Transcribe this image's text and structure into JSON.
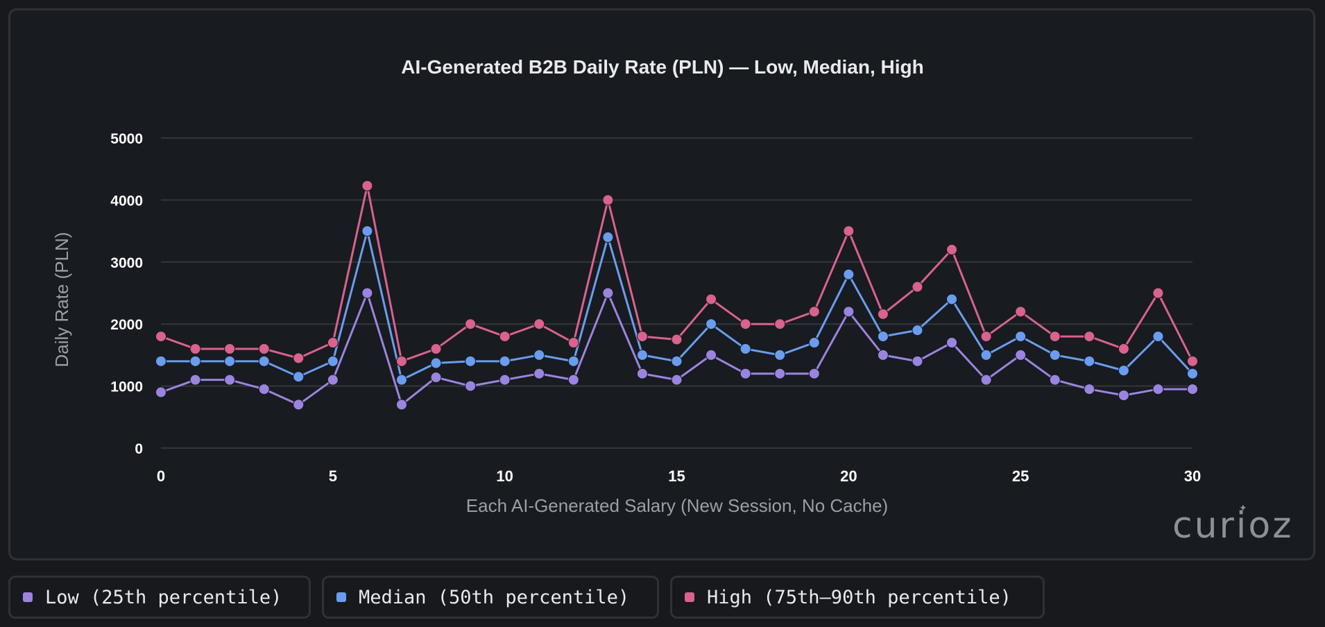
{
  "chart_data": {
    "type": "line",
    "title": "AI-Generated B2B Daily Rate (PLN) — Low, Median, High",
    "xlabel": "Each AI-Generated Salary (New Session, No Cache)",
    "ylabel": "Daily Rate (PLN)",
    "xlim": [
      0,
      30
    ],
    "ylim": [
      0,
      5000
    ],
    "x_ticks": [
      0,
      5,
      10,
      15,
      20,
      25,
      30
    ],
    "y_ticks": [
      0,
      1000,
      2000,
      3000,
      4000,
      5000
    ],
    "grid": true,
    "series": [
      {
        "name": "Low (25th percentile)",
        "color": "#9b84e0",
        "values": [
          900,
          1100,
          1100,
          950,
          700,
          1100,
          2500,
          700,
          1140,
          1000,
          1100,
          1200,
          1100,
          2500,
          1200,
          1100,
          1500,
          1200,
          1200,
          1200,
          2200,
          1500,
          1400,
          1700,
          1100,
          1500,
          1100,
          950,
          850,
          950,
          950
        ]
      },
      {
        "name": "Median (50th percentile)",
        "color": "#6a9df0",
        "values": [
          1400,
          1400,
          1400,
          1400,
          1150,
          1400,
          3500,
          1100,
          1370,
          1400,
          1400,
          1500,
          1400,
          3400,
          1500,
          1400,
          2000,
          1600,
          1500,
          1700,
          2800,
          1800,
          1900,
          2400,
          1500,
          1800,
          1500,
          1400,
          1250,
          1800,
          1200
        ]
      },
      {
        "name": "High (75th–90th percentile)",
        "color": "#d9628f",
        "values": [
          1800,
          1600,
          1600,
          1600,
          1450,
          1700,
          4230,
          1400,
          1600,
          2000,
          1800,
          2000,
          1700,
          4000,
          1800,
          1750,
          2400,
          2000,
          2000,
          2200,
          3500,
          2160,
          2600,
          3200,
          1800,
          2200,
          1800,
          1800,
          1600,
          2500,
          1400
        ]
      }
    ]
  },
  "legend": [
    {
      "label": "Low (25th percentile)",
      "color": "#9b84e0"
    },
    {
      "label": "Median (50th percentile)",
      "color": "#6a9df0"
    },
    {
      "label": "High (75th–90th percentile)",
      "color": "#d9628f"
    }
  ],
  "brand": {
    "name": "curioz",
    "spark_icon": "sparkle-icon"
  }
}
